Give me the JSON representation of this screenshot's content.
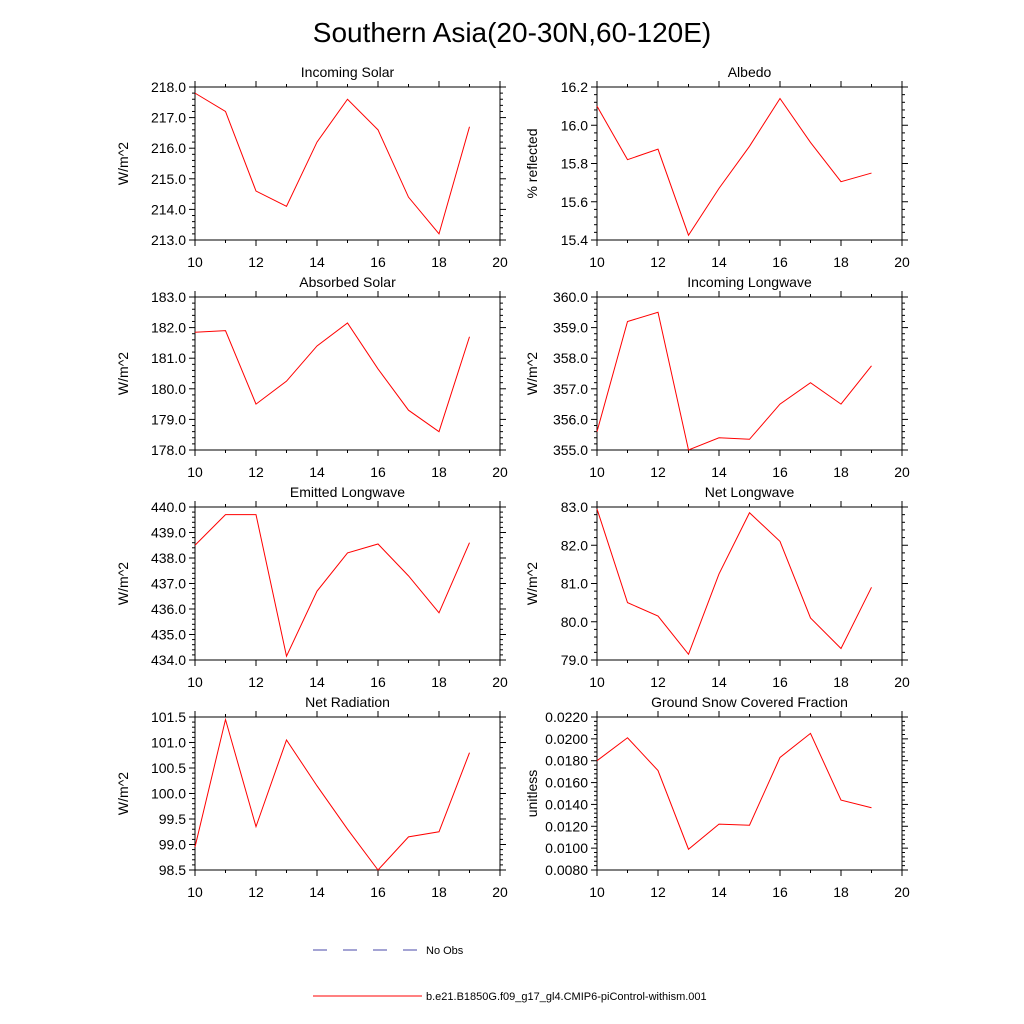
{
  "title": "Southern Asia(20-30N,60-120E)",
  "legend": {
    "obs_label": "No Obs",
    "obs_color": "#4a4aa8",
    "model_label": "b.e21.B1850G.f09_g17_gl4.CMIP6-piControl-withism.001",
    "model_color": "#ff0000"
  },
  "chart_data": [
    {
      "type": "line",
      "title": "Incoming Solar",
      "xlabel": "",
      "ylabel": "W/m^2",
      "x": [
        10,
        11,
        12,
        13,
        14,
        15,
        16,
        17,
        18,
        19
      ],
      "values": [
        217.8,
        217.2,
        214.6,
        214.1,
        216.2,
        217.6,
        216.6,
        214.4,
        213.2,
        216.7
      ],
      "xlim": [
        10,
        20
      ],
      "ylim": [
        213,
        218
      ],
      "xticks": [
        "10",
        "12",
        "14",
        "16",
        "18",
        "20"
      ],
      "yticks": [
        "213.0",
        "214.0",
        "215.0",
        "216.0",
        "217.0",
        "218.0"
      ]
    },
    {
      "type": "line",
      "title": "Albedo",
      "xlabel": "",
      "ylabel": "% reflected",
      "x": [
        10,
        11,
        12,
        13,
        14,
        15,
        16,
        17,
        18,
        19
      ],
      "values": [
        16.1,
        15.82,
        15.875,
        15.425,
        15.67,
        15.89,
        16.14,
        15.91,
        15.705,
        15.75
      ],
      "xlim": [
        10,
        20
      ],
      "ylim": [
        15.4,
        16.2
      ],
      "xticks": [
        "10",
        "12",
        "14",
        "16",
        "18",
        "20"
      ],
      "yticks": [
        "15.4",
        "15.6",
        "15.8",
        "16.0",
        "16.2"
      ]
    },
    {
      "type": "line",
      "title": "Absorbed Solar",
      "xlabel": "",
      "ylabel": "W/m^2",
      "x": [
        10,
        11,
        12,
        13,
        14,
        15,
        16,
        17,
        18,
        19
      ],
      "values": [
        181.85,
        181.9,
        179.5,
        180.25,
        181.4,
        182.15,
        180.65,
        179.3,
        178.6,
        181.7
      ],
      "xlim": [
        10,
        20
      ],
      "ylim": [
        178,
        183
      ],
      "xticks": [
        "10",
        "12",
        "14",
        "16",
        "18",
        "20"
      ],
      "yticks": [
        "178.0",
        "179.0",
        "180.0",
        "181.0",
        "182.0",
        "183.0"
      ]
    },
    {
      "type": "line",
      "title": "Incoming Longwave",
      "xlabel": "",
      "ylabel": "W/m^2",
      "x": [
        10,
        11,
        12,
        13,
        14,
        15,
        16,
        17,
        18,
        19
      ],
      "values": [
        355.6,
        359.2,
        359.5,
        355.0,
        355.4,
        355.35,
        356.5,
        357.2,
        356.5,
        357.75
      ],
      "xlim": [
        10,
        20
      ],
      "ylim": [
        355,
        360
      ],
      "xticks": [
        "10",
        "12",
        "14",
        "16",
        "18",
        "20"
      ],
      "yticks": [
        "355.0",
        "356.0",
        "357.0",
        "358.0",
        "359.0",
        "360.0"
      ]
    },
    {
      "type": "line",
      "title": "Emitted Longwave",
      "xlabel": "",
      "ylabel": "W/m^2",
      "x": [
        10,
        11,
        12,
        13,
        14,
        15,
        16,
        17,
        18,
        19
      ],
      "values": [
        438.5,
        439.7,
        439.7,
        434.15,
        436.7,
        438.2,
        438.55,
        437.3,
        435.85,
        438.6
      ],
      "xlim": [
        10,
        20
      ],
      "ylim": [
        434,
        440
      ],
      "xticks": [
        "10",
        "12",
        "14",
        "16",
        "18",
        "20"
      ],
      "yticks": [
        "434.0",
        "435.0",
        "436.0",
        "437.0",
        "438.0",
        "439.0",
        "440.0"
      ]
    },
    {
      "type": "line",
      "title": "Net Longwave",
      "xlabel": "",
      "ylabel": "W/m^2",
      "x": [
        10,
        11,
        12,
        13,
        14,
        15,
        16,
        17,
        18,
        19
      ],
      "values": [
        82.95,
        80.5,
        80.15,
        79.15,
        81.25,
        82.85,
        82.1,
        80.1,
        79.3,
        80.9
      ],
      "xlim": [
        10,
        20
      ],
      "ylim": [
        79,
        83
      ],
      "xticks": [
        "10",
        "12",
        "14",
        "16",
        "18",
        "20"
      ],
      "yticks": [
        "79.0",
        "80.0",
        "81.0",
        "82.0",
        "83.0"
      ]
    },
    {
      "type": "line",
      "title": "Net Radiation",
      "xlabel": "",
      "ylabel": "W/m^2",
      "x": [
        10,
        11,
        12,
        13,
        14,
        15,
        16,
        17,
        18,
        19
      ],
      "values": [
        98.95,
        101.45,
        99.35,
        101.05,
        100.15,
        99.3,
        98.5,
        99.15,
        99.25,
        100.8
      ],
      "xlim": [
        10,
        20
      ],
      "ylim": [
        98.5,
        101.5
      ],
      "xticks": [
        "10",
        "12",
        "14",
        "16",
        "18",
        "20"
      ],
      "yticks": [
        "98.5",
        "99.0",
        "99.5",
        "100.0",
        "100.5",
        "101.0",
        "101.5"
      ]
    },
    {
      "type": "line",
      "title": "Ground Snow Covered Fraction",
      "xlabel": "",
      "ylabel": "unitless",
      "x": [
        10,
        11,
        12,
        13,
        14,
        15,
        16,
        17,
        18,
        19
      ],
      "values": [
        0.018,
        0.0201,
        0.0171,
        0.0099,
        0.0122,
        0.0121,
        0.0183,
        0.0205,
        0.0144,
        0.0137
      ],
      "xlim": [
        10,
        20
      ],
      "ylim": [
        0.008,
        0.022
      ],
      "xticks": [
        "10",
        "12",
        "14",
        "16",
        "18",
        "20"
      ],
      "yticks": [
        "0.0080",
        "0.0100",
        "0.0120",
        "0.0140",
        "0.0160",
        "0.0180",
        "0.0200",
        "0.0220"
      ]
    }
  ]
}
